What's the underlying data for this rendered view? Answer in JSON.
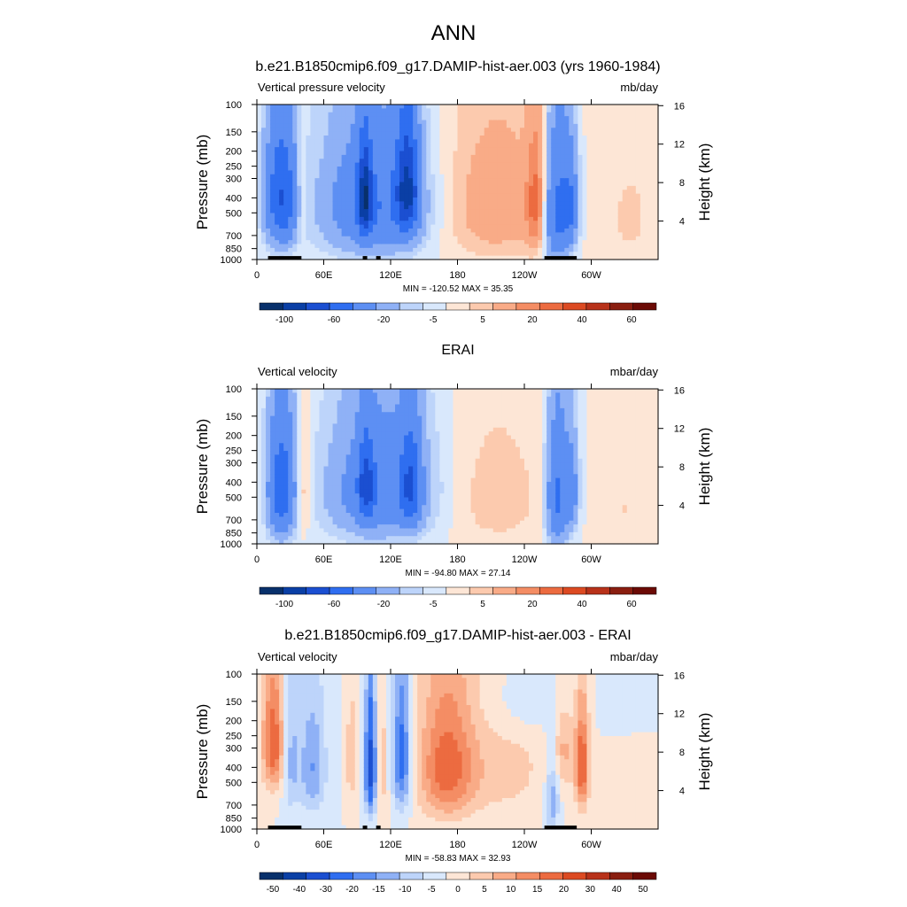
{
  "figure": {
    "title": "ANN",
    "subtitle": "b.e21.B1850cmip6.f09_g17.DAMIP-hist-aer.003 (yrs 1960-1984)"
  },
  "colors": {
    "main_scale": [
      "#08306b",
      "#0a3fa5",
      "#1b4fd1",
      "#2f6ef0",
      "#5d8ff3",
      "#8fb1f6",
      "#bdd4fa",
      "#d9e8fc",
      "#fde6d6",
      "#fccaae",
      "#f9ab87",
      "#f48d64",
      "#ec6b40",
      "#dc4a22",
      "#b8321a",
      "#8a1e10",
      "#6b0a05"
    ],
    "diff_scale": [
      "#08306b",
      "#0a3fa5",
      "#1b4fd1",
      "#2f6ef0",
      "#5d8ff3",
      "#8fb1f6",
      "#bdd4fa",
      "#d9e8fc",
      "#fde6d6",
      "#fccaae",
      "#f9ab87",
      "#f48d64",
      "#ec6b40",
      "#dc4a22",
      "#b8321a",
      "#8a1e10",
      "#6b0a05"
    ],
    "topography": "#000000"
  },
  "chart_data": [
    {
      "type": "heatmap",
      "title": "",
      "left_label": "Vertical pressure velocity",
      "right_label": "mb/day",
      "ylabel": "Pressure (mb)",
      "y2label": "Height (km)",
      "y_ticks": [
        "100",
        "150",
        "200",
        "250",
        "300",
        "400",
        "500",
        "700",
        "850",
        "1000"
      ],
      "y2_ticks": [
        "4",
        "8",
        "12",
        "16"
      ],
      "x_ticks": [
        "0",
        "60E",
        "120E",
        "180",
        "120W",
        "60W"
      ],
      "stats": "MIN = -120.52  MAX =  35.35",
      "colorbar_labels": [
        "-100",
        "-60",
        "-20",
        "-5",
        "5",
        "20",
        "40",
        "60"
      ],
      "scale": "main_scale",
      "levels": [
        -120,
        -100,
        -80,
        -60,
        -40,
        -20,
        -10,
        -5,
        0,
        5,
        10,
        20,
        30,
        40,
        50,
        60,
        70,
        80
      ],
      "min": -120.52,
      "max": 35.35,
      "topography": [
        [
          10,
          40
        ],
        [
          95,
          99
        ],
        [
          107,
          111
        ],
        [
          258,
          287
        ]
      ],
      "features": [
        {
          "lon": 22,
          "p": 400,
          "lon_w": 14,
          "p_w": 360,
          "v": -60
        },
        {
          "lon": 40,
          "p": 400,
          "lon_w": 5,
          "p_w": 300,
          "v": 12
        },
        {
          "lon": 105,
          "p": 450,
          "lon_w": 45,
          "p_w": 420,
          "v": -40
        },
        {
          "lon": 97,
          "p": 400,
          "lon_w": 6,
          "p_w": 250,
          "v": -70
        },
        {
          "lon": 135,
          "p": 350,
          "lon_w": 10,
          "p_w": 280,
          "v": -70
        },
        {
          "lon": 215,
          "p": 450,
          "lon_w": 50,
          "p_w": 480,
          "v": 16
        },
        {
          "lon": 250,
          "p": 430,
          "lon_w": 8,
          "p_w": 350,
          "v": 28
        },
        {
          "lon": 270,
          "p": 500,
          "lon_w": 12,
          "p_w": 450,
          "v": -50
        },
        {
          "lon": 282,
          "p": 450,
          "lon_w": 7,
          "p_w": 300,
          "v": -30
        },
        {
          "lon": 335,
          "p": 550,
          "lon_w": 25,
          "p_w": 500,
          "v": 6
        }
      ]
    },
    {
      "type": "heatmap",
      "title": "ERAI",
      "left_label": "Vertical velocity",
      "right_label": "mbar/day",
      "ylabel": "Pressure (mb)",
      "y2label": "Height (km)",
      "y_ticks": [
        "100",
        "150",
        "200",
        "250",
        "300",
        "400",
        "500",
        "700",
        "850",
        "1000"
      ],
      "y2_ticks": [
        "4",
        "8",
        "12",
        "16"
      ],
      "x_ticks": [
        "0",
        "60E",
        "120E",
        "180",
        "120W",
        "60W"
      ],
      "stats": "MIN = -94.80  MAX =  27.14",
      "colorbar_labels": [
        "-100",
        "-60",
        "-20",
        "-5",
        "5",
        "20",
        "40",
        "60"
      ],
      "scale": "main_scale",
      "levels": [
        -120,
        -100,
        -80,
        -60,
        -40,
        -20,
        -10,
        -5,
        0,
        5,
        10,
        20,
        30,
        40,
        50,
        60,
        70,
        80
      ],
      "min": -94.8,
      "max": 27.14,
      "topography": [],
      "features": [
        {
          "lon": 22,
          "p": 450,
          "lon_w": 12,
          "p_w": 400,
          "v": -55
        },
        {
          "lon": 42,
          "p": 450,
          "lon_w": 6,
          "p_w": 350,
          "v": 12
        },
        {
          "lon": 110,
          "p": 450,
          "lon_w": 45,
          "p_w": 420,
          "v": -35
        },
        {
          "lon": 98,
          "p": 420,
          "lon_w": 7,
          "p_w": 250,
          "v": -45
        },
        {
          "lon": 138,
          "p": 420,
          "lon_w": 9,
          "p_w": 300,
          "v": -45
        },
        {
          "lon": 215,
          "p": 500,
          "lon_w": 45,
          "p_w": 480,
          "v": 8
        },
        {
          "lon": 270,
          "p": 500,
          "lon_w": 10,
          "p_w": 450,
          "v": -45
        },
        {
          "lon": 283,
          "p": 450,
          "lon_w": 6,
          "p_w": 300,
          "v": -25
        },
        {
          "lon": 330,
          "p": 600,
          "lon_w": 20,
          "p_w": 450,
          "v": 5
        }
      ]
    },
    {
      "type": "heatmap",
      "title": "b.e21.B1850cmip6.f09_g17.DAMIP-hist-aer.003 - ERAI",
      "left_label": "Vertical velocity",
      "right_label": "mbar/day",
      "ylabel": "Pressure (mb)",
      "y2label": "Height (km)",
      "y_ticks": [
        "100",
        "150",
        "200",
        "250",
        "300",
        "400",
        "500",
        "700",
        "850",
        "1000"
      ],
      "y2_ticks": [
        "4",
        "8",
        "12",
        "16"
      ],
      "x_ticks": [
        "0",
        "60E",
        "120E",
        "180",
        "120W",
        "60W"
      ],
      "stats": "MIN = -58.83  MAX =  32.93",
      "colorbar_labels": [
        "-50",
        "-40",
        "-30",
        "-20",
        "-15",
        "-10",
        "-5",
        "0",
        "5",
        "10",
        "15",
        "20",
        "30",
        "40",
        "50"
      ],
      "scale": "diff_scale",
      "levels": [
        -60,
        -50,
        -40,
        -30,
        -20,
        -15,
        -10,
        -5,
        0,
        5,
        10,
        15,
        20,
        30,
        40,
        50,
        60,
        70
      ],
      "min": -58.83,
      "max": 32.93,
      "topography": [
        [
          10,
          40
        ],
        [
          95,
          99
        ],
        [
          107,
          111
        ],
        [
          258,
          287
        ]
      ],
      "features": [
        {
          "lon": 15,
          "p": 280,
          "lon_w": 10,
          "p_w": 250,
          "v": 25
        },
        {
          "lon": 30,
          "p": 350,
          "lon_w": 8,
          "p_w": 350,
          "v": -12
        },
        {
          "lon": 50,
          "p": 400,
          "lon_w": 12,
          "p_w": 350,
          "v": -15
        },
        {
          "lon": 85,
          "p": 350,
          "lon_w": 5,
          "p_w": 250,
          "v": 10
        },
        {
          "lon": 102,
          "p": 400,
          "lon_w": 5,
          "p_w": 350,
          "v": -35
        },
        {
          "lon": 112,
          "p": 400,
          "lon_w": 5,
          "p_w": 350,
          "v": 8
        },
        {
          "lon": 130,
          "p": 350,
          "lon_w": 8,
          "p_w": 350,
          "v": -25
        },
        {
          "lon": 170,
          "p": 400,
          "lon_w": 25,
          "p_w": 400,
          "v": 22
        },
        {
          "lon": 220,
          "p": 400,
          "lon_w": 45,
          "p_w": 400,
          "v": 7
        },
        {
          "lon": 240,
          "p": 150,
          "lon_w": 40,
          "p_w": 100,
          "v": -6
        },
        {
          "lon": 265,
          "p": 600,
          "lon_w": 6,
          "p_w": 400,
          "v": -15
        },
        {
          "lon": 292,
          "p": 400,
          "lon_w": 6,
          "p_w": 300,
          "v": 25
        },
        {
          "lon": 275,
          "p": 300,
          "lon_w": 12,
          "p_w": 200,
          "v": 10
        }
      ]
    }
  ]
}
